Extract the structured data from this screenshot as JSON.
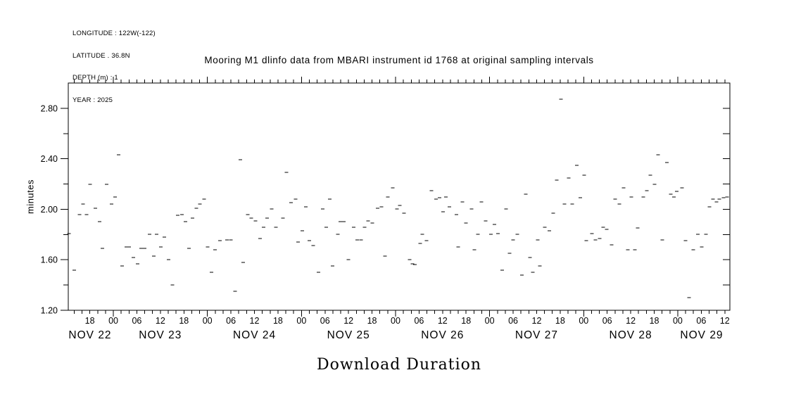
{
  "header": {
    "lines": [
      "LONGITUDE : 122W(-122)",
      "LATITUDE . 36.8N",
      "DEPTH (m) : 1",
      "YEAR : 2025"
    ]
  },
  "chart_data": {
    "type": "scatter",
    "marker": "horizontal-dash",
    "title": "Mooring M1 dlinfo data from MBARI instrument id 1768 at original sampling intervals",
    "xlabel": "Download Duration",
    "ylabel": "minutes",
    "x_unit": "hours since NOV 22 00:00",
    "xlim": [
      12.5,
      181.3
    ],
    "ylim": [
      1.2,
      3.0
    ],
    "x_minor_tick_hours": 2,
    "y_minor_tick": 0.2,
    "grid": false,
    "legend": "none",
    "y_tick_labels": [
      [
        1.2,
        "1.20"
      ],
      [
        1.6,
        "1.60"
      ],
      [
        2.0,
        "2.00"
      ],
      [
        2.4,
        "2.40"
      ],
      [
        2.8,
        "2.80"
      ]
    ],
    "hour_ticks": [
      [
        18,
        "18"
      ],
      [
        24,
        "00"
      ],
      [
        30,
        "06"
      ],
      [
        36,
        "12"
      ],
      [
        42,
        "18"
      ],
      [
        48,
        "00"
      ],
      [
        54,
        "06"
      ],
      [
        60,
        "12"
      ],
      [
        66,
        "18"
      ],
      [
        72,
        "00"
      ],
      [
        78,
        "06"
      ],
      [
        84,
        "12"
      ],
      [
        90,
        "18"
      ],
      [
        96,
        "00"
      ],
      [
        102,
        "06"
      ],
      [
        108,
        "12"
      ],
      [
        114,
        "18"
      ],
      [
        120,
        "00"
      ],
      [
        126,
        "06"
      ],
      [
        132,
        "12"
      ],
      [
        138,
        "18"
      ],
      [
        144,
        "00"
      ],
      [
        150,
        "06"
      ],
      [
        156,
        "12"
      ],
      [
        162,
        "18"
      ],
      [
        168,
        "00"
      ],
      [
        174,
        "06"
      ],
      [
        180,
        "12"
      ]
    ],
    "day_labels": [
      [
        12,
        "NOV 22"
      ],
      [
        36,
        "NOV 23"
      ],
      [
        60,
        "NOV 24"
      ],
      [
        84,
        "NOV 25"
      ],
      [
        108,
        "NOV 26"
      ],
      [
        132,
        "NOV 27"
      ],
      [
        156,
        "NOV 28"
      ],
      [
        180,
        "NOV 29"
      ]
    ],
    "points": [
      [
        12.7,
        1.81
      ],
      [
        14.0,
        1.52
      ],
      [
        15.4,
        1.96
      ],
      [
        16.3,
        2.04
      ],
      [
        17.2,
        1.96
      ],
      [
        18.1,
        2.2
      ],
      [
        19.4,
        2.01
      ],
      [
        20.5,
        1.9
      ],
      [
        21.2,
        1.69
      ],
      [
        22.3,
        2.2
      ],
      [
        23.5,
        2.04
      ],
      [
        24.4,
        2.1
      ],
      [
        25.3,
        2.43
      ],
      [
        26.2,
        1.55
      ],
      [
        27.3,
        1.7
      ],
      [
        28.0,
        1.7
      ],
      [
        29.1,
        1.62
      ],
      [
        30.2,
        1.57
      ],
      [
        31.1,
        1.69
      ],
      [
        32.0,
        1.69
      ],
      [
        33.2,
        1.8
      ],
      [
        34.3,
        1.63
      ],
      [
        35.0,
        1.8
      ],
      [
        36.1,
        1.7
      ],
      [
        37.0,
        1.78
      ],
      [
        38.1,
        1.6
      ],
      [
        39.1,
        1.4
      ],
      [
        40.4,
        1.95
      ],
      [
        41.5,
        1.96
      ],
      [
        42.4,
        1.9
      ],
      [
        43.3,
        1.69
      ],
      [
        44.2,
        1.93
      ],
      [
        45.2,
        2.01
      ],
      [
        46.1,
        2.04
      ],
      [
        47.2,
        2.08
      ],
      [
        48.1,
        1.7
      ],
      [
        49.0,
        1.5
      ],
      [
        49.9,
        1.68
      ],
      [
        51.2,
        1.75
      ],
      [
        53.0,
        1.76
      ],
      [
        54.0,
        1.76
      ],
      [
        55.1,
        1.35
      ],
      [
        56.4,
        2.39
      ],
      [
        57.1,
        1.58
      ],
      [
        58.3,
        1.96
      ],
      [
        59.2,
        1.93
      ],
      [
        60.3,
        1.91
      ],
      [
        61.4,
        1.77
      ],
      [
        62.3,
        1.86
      ],
      [
        63.2,
        1.93
      ],
      [
        64.4,
        2.0
      ],
      [
        65.5,
        1.86
      ],
      [
        67.3,
        1.93
      ],
      [
        68.2,
        2.29
      ],
      [
        69.3,
        2.05
      ],
      [
        70.5,
        2.08
      ],
      [
        71.1,
        1.74
      ],
      [
        72.2,
        1.83
      ],
      [
        73.1,
        2.02
      ],
      [
        74.0,
        1.75
      ],
      [
        75.0,
        1.71
      ],
      [
        76.3,
        1.5
      ],
      [
        77.4,
        2.0
      ],
      [
        78.3,
        1.86
      ],
      [
        79.2,
        2.08
      ],
      [
        79.9,
        1.55
      ],
      [
        81.3,
        1.8
      ],
      [
        81.9,
        1.9
      ],
      [
        82.8,
        1.9
      ],
      [
        84.0,
        1.6
      ],
      [
        85.3,
        1.86
      ],
      [
        86.2,
        1.76
      ],
      [
        87.2,
        1.76
      ],
      [
        88.1,
        1.86
      ],
      [
        89.0,
        1.91
      ],
      [
        90.1,
        1.89
      ],
      [
        91.4,
        2.01
      ],
      [
        92.4,
        2.02
      ],
      [
        93.3,
        1.63
      ],
      [
        94.0,
        2.1
      ],
      [
        95.3,
        2.17
      ],
      [
        96.4,
        2.0
      ],
      [
        97.1,
        2.03
      ],
      [
        98.2,
        1.97
      ],
      [
        99.6,
        1.6
      ],
      [
        100.3,
        1.57
      ],
      [
        100.9,
        1.56
      ],
      [
        102.3,
        1.73
      ],
      [
        102.8,
        1.8
      ],
      [
        103.9,
        1.75
      ],
      [
        105.2,
        2.15
      ],
      [
        106.3,
        2.08
      ],
      [
        107.2,
        2.09
      ],
      [
        108.1,
        1.98
      ],
      [
        108.8,
        2.1
      ],
      [
        109.7,
        2.02
      ],
      [
        111.5,
        1.96
      ],
      [
        112.0,
        1.7
      ],
      [
        113.1,
        2.06
      ],
      [
        114.0,
        1.89
      ],
      [
        115.4,
        2.0
      ],
      [
        116.1,
        1.68
      ],
      [
        117.0,
        1.8
      ],
      [
        117.9,
        2.06
      ],
      [
        119.0,
        1.91
      ],
      [
        120.3,
        1.8
      ],
      [
        121.2,
        1.88
      ],
      [
        122.1,
        1.81
      ],
      [
        123.2,
        1.52
      ],
      [
        124.2,
        2.0
      ],
      [
        125.1,
        1.65
      ],
      [
        126.0,
        1.76
      ],
      [
        127.1,
        1.8
      ],
      [
        128.2,
        1.48
      ],
      [
        129.2,
        2.12
      ],
      [
        130.3,
        1.62
      ],
      [
        131.0,
        1.5
      ],
      [
        132.3,
        1.76
      ],
      [
        132.8,
        1.55
      ],
      [
        134.1,
        1.86
      ],
      [
        135.2,
        1.83
      ],
      [
        136.2,
        1.97
      ],
      [
        137.1,
        2.23
      ],
      [
        138.2,
        2.87
      ],
      [
        139.1,
        2.04
      ],
      [
        140.2,
        2.25
      ],
      [
        141.1,
        2.04
      ],
      [
        142.2,
        2.35
      ],
      [
        143.1,
        2.09
      ],
      [
        144.1,
        2.27
      ],
      [
        144.7,
        1.75
      ],
      [
        146.1,
        1.81
      ],
      [
        147.0,
        1.76
      ],
      [
        148.1,
        1.77
      ],
      [
        149.0,
        1.86
      ],
      [
        149.9,
        1.84
      ],
      [
        151.1,
        1.72
      ],
      [
        152.0,
        2.08
      ],
      [
        153.1,
        2.04
      ],
      [
        154.2,
        2.17
      ],
      [
        155.3,
        1.68
      ],
      [
        156.2,
        2.1
      ],
      [
        157.1,
        1.68
      ],
      [
        157.8,
        1.85
      ],
      [
        159.2,
        2.1
      ],
      [
        160.1,
        2.15
      ],
      [
        161.0,
        2.27
      ],
      [
        162.1,
        2.2
      ],
      [
        163.0,
        2.43
      ],
      [
        164.1,
        1.76
      ],
      [
        165.2,
        2.37
      ],
      [
        166.2,
        2.12
      ],
      [
        167.0,
        2.1
      ],
      [
        167.7,
        2.14
      ],
      [
        169.1,
        2.17
      ],
      [
        170.0,
        1.75
      ],
      [
        170.9,
        1.3
      ],
      [
        172.0,
        1.68
      ],
      [
        173.1,
        1.8
      ],
      [
        174.1,
        1.7
      ],
      [
        175.2,
        1.8
      ],
      [
        176.1,
        2.02
      ],
      [
        177.0,
        2.08
      ],
      [
        177.9,
        2.06
      ],
      [
        178.6,
        2.08
      ],
      [
        179.7,
        2.09
      ],
      [
        180.6,
        2.1
      ]
    ]
  }
}
